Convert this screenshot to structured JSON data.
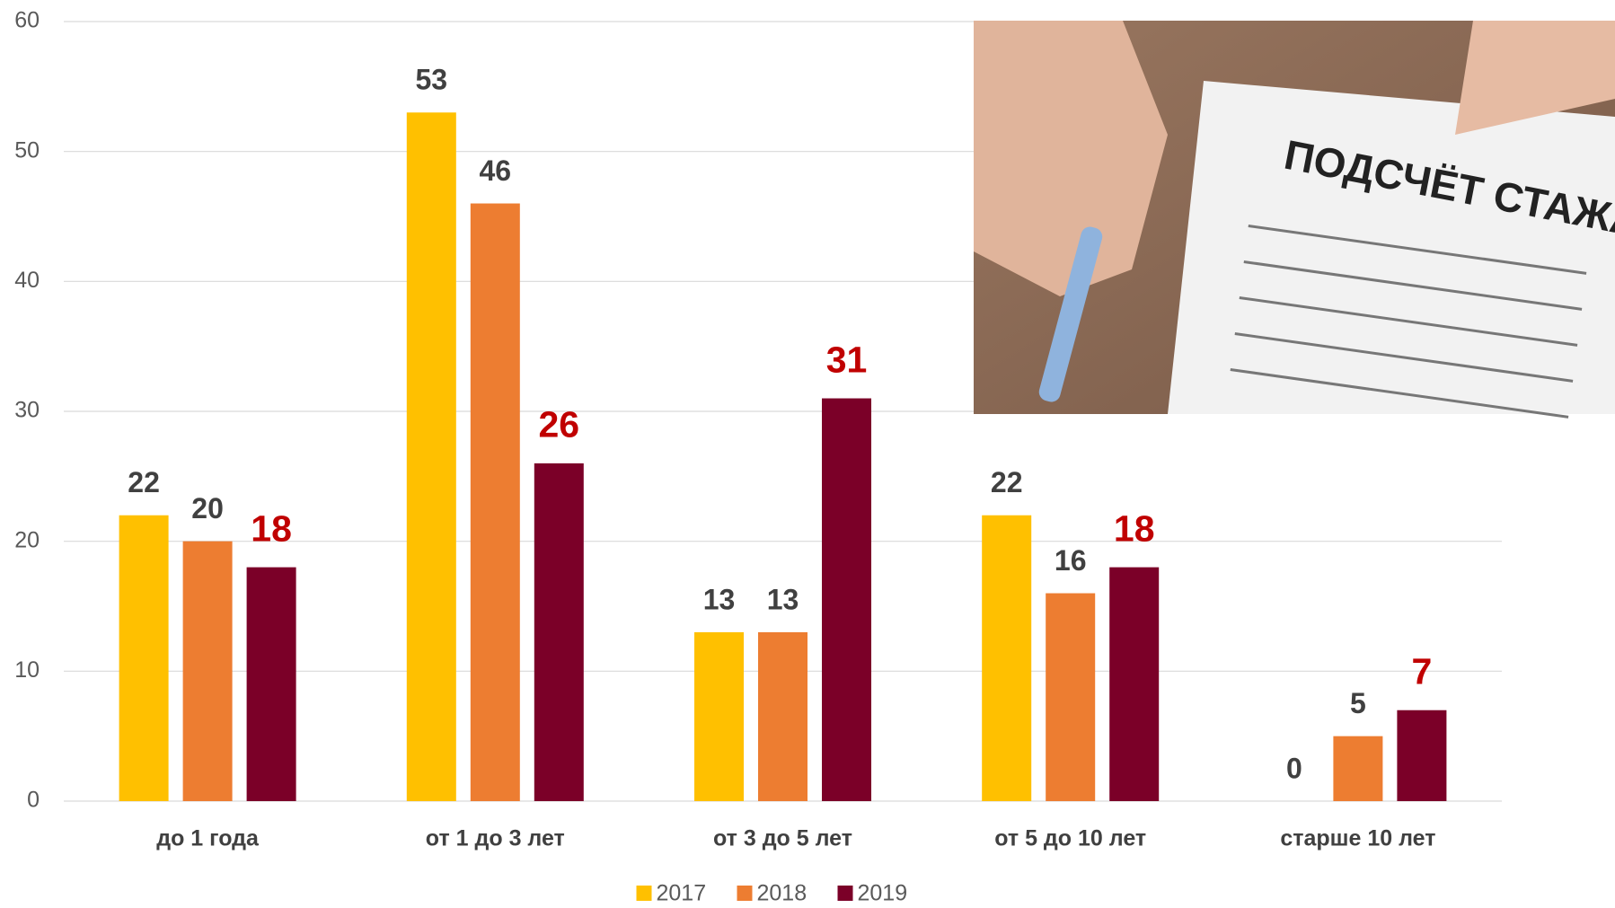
{
  "chart_data": {
    "type": "bar",
    "categories": [
      "до 1 года",
      "от 1 до 3 лет",
      "от 3 до 5 лет",
      "от 5 до 10 лет",
      "старше 10 лет"
    ],
    "series": [
      {
        "name": "2017",
        "color": "#FFC000",
        "label_color": "#404040",
        "values": [
          22,
          53,
          13,
          22,
          0
        ]
      },
      {
        "name": "2018",
        "color": "#ED7D31",
        "label_color": "#404040",
        "values": [
          20,
          46,
          13,
          16,
          5
        ]
      },
      {
        "name": "2019",
        "color": "#7B0028",
        "label_color": "#C00000",
        "values": [
          18,
          26,
          31,
          18,
          7
        ]
      }
    ],
    "ylim": [
      0,
      60
    ],
    "yticks": [
      0,
      10,
      20,
      30,
      40,
      50,
      60
    ],
    "grid": true,
    "legend": "bottom"
  },
  "photo": {
    "text": "ПОДСЧЁТ СТАЖА"
  }
}
